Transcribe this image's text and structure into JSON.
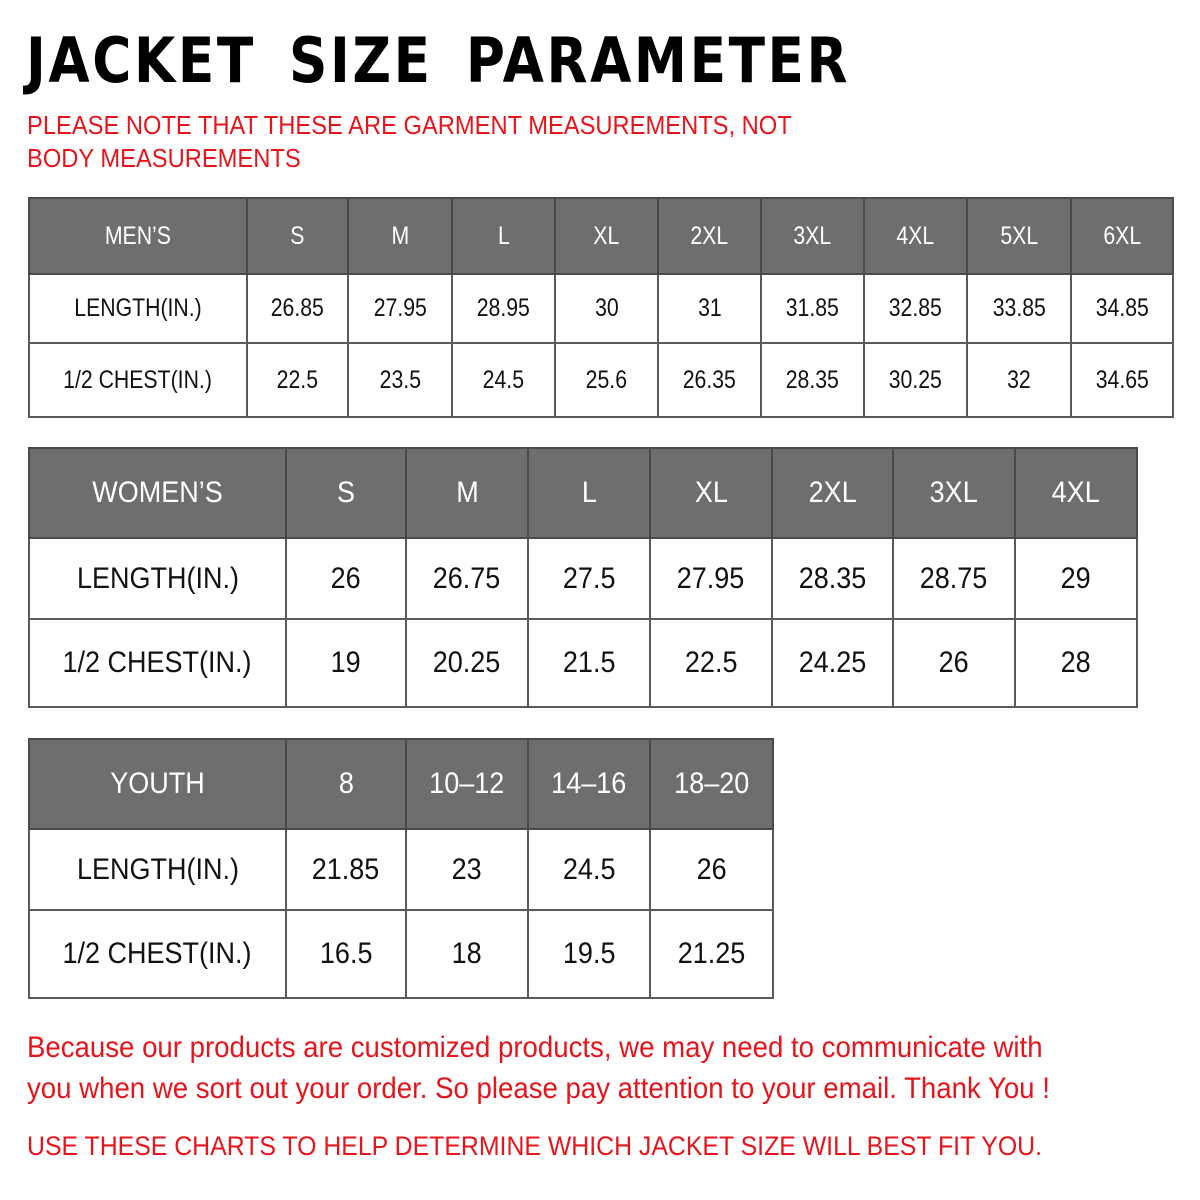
{
  "title": "JACKET SIZE PARAMETER",
  "note": "PLEASE NOTE THAT THESE ARE GARMENT MEASUREMENTS, NOT BODY MEASUREMENTS",
  "colors": {
    "header_bg": "#6e6e6e",
    "accent_red": "#e8141b"
  },
  "tables": {
    "men": {
      "header": [
        "MEN’S",
        "S",
        "M",
        "L",
        "XL",
        "2XL",
        "3XL",
        "4XL",
        "5XL",
        "6XL"
      ],
      "rows": [
        [
          "LENGTH(IN.)",
          "26.85",
          "27.95",
          "28.95",
          "30",
          "31",
          "31.85",
          "32.85",
          "33.85",
          "34.85"
        ],
        [
          "1/2 CHEST(IN.)",
          "22.5",
          "23.5",
          "24.5",
          "25.6",
          "26.35",
          "28.35",
          "30.25",
          "32",
          "34.65"
        ]
      ]
    },
    "women": {
      "header": [
        "WOMEN’S",
        "S",
        "M",
        "L",
        "XL",
        "2XL",
        "3XL",
        "4XL"
      ],
      "rows": [
        [
          "LENGTH(IN.)",
          "26",
          "26.75",
          "27.5",
          "27.95",
          "28.35",
          "28.75",
          "29"
        ],
        [
          "1/2 CHEST(IN.)",
          "19",
          "20.25",
          "21.5",
          "22.5",
          "24.25",
          "26",
          "28"
        ]
      ]
    },
    "youth": {
      "header": [
        "YOUTH",
        "8",
        "10–12",
        "14–16",
        "18–20"
      ],
      "rows": [
        [
          "LENGTH(IN.)",
          "21.85",
          "23",
          "24.5",
          "26"
        ],
        [
          "1/2 CHEST(IN.)",
          "16.5",
          "18",
          "19.5",
          "21.25"
        ]
      ]
    }
  },
  "footer": {
    "message": "Because our products are customized products, we may need to communicate with you when we sort out your order. So please pay attention to your email. Thank You !",
    "advice": "USE THESE CHARTS TO HELP DETERMINE WHICH JACKET SIZE WILL BEST FIT YOU."
  }
}
